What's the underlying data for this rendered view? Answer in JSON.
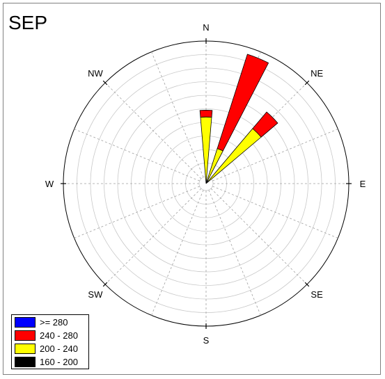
{
  "chart_data": {
    "type": "wind-rose",
    "title": "SEP",
    "directions": [
      "N",
      "NE",
      "E",
      "SE",
      "S",
      "SW",
      "W",
      "NW"
    ],
    "bins": [
      {
        "name": ">= 280",
        "color": "#0000ff"
      },
      {
        "name": "240 - 280",
        "color": "#ff0000"
      },
      {
        "name": "200 - 240",
        "color": "#ffff00"
      },
      {
        "name": "160 - 200",
        "color": "#000000"
      }
    ],
    "rings": 10,
    "max_value": 10,
    "series": [
      {
        "direction_deg": 0,
        "segments": {
          "200 - 240": 4.4,
          "240 - 280": 0.5
        }
      },
      {
        "direction_deg": 22.5,
        "segments": {
          "200 - 240": 2.2,
          "240 - 280": 7.3
        }
      },
      {
        "direction_deg": 45,
        "segments": {
          "200 - 240": 4.8,
          "240 - 280": 1.6
        }
      }
    ]
  }
}
